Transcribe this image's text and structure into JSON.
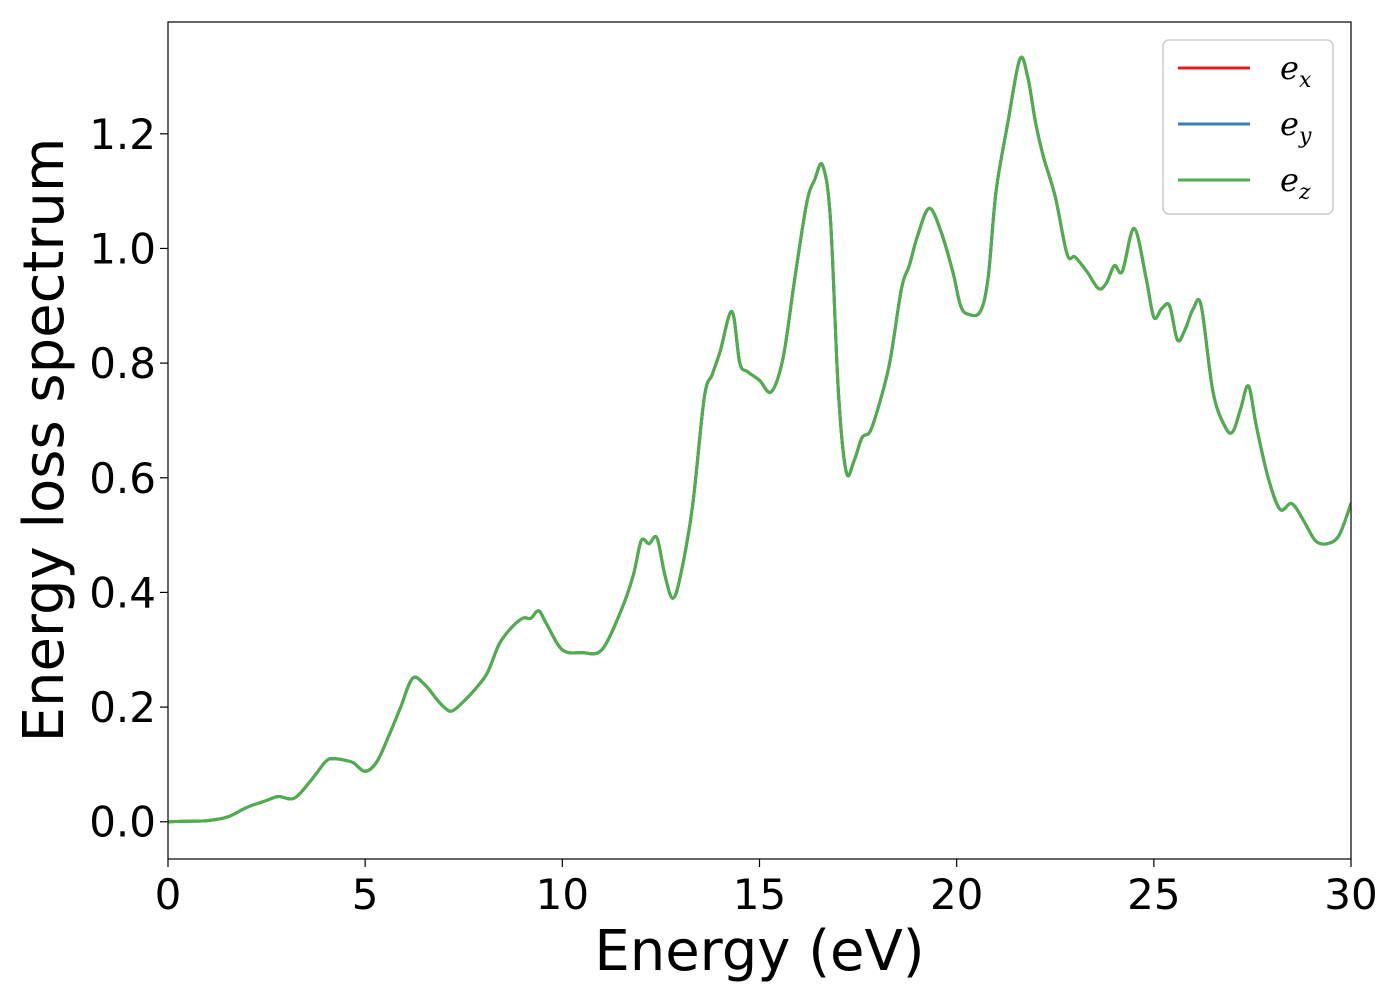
{
  "chart_data": {
    "type": "line",
    "title": "",
    "xlabel": "Energy (eV)",
    "ylabel": "Energy loss spectrum",
    "xlim": [
      0,
      30
    ],
    "ylim": [
      -0.065,
      1.395
    ],
    "xticks": [
      0,
      5,
      10,
      15,
      20,
      25,
      30
    ],
    "xtick_labels": [
      "0",
      "5",
      "10",
      "15",
      "20",
      "25",
      "30"
    ],
    "yticks": [
      0.0,
      0.2,
      0.4,
      0.6,
      0.8,
      1.0,
      1.2
    ],
    "ytick_labels": [
      "0.0",
      "0.2",
      "0.4",
      "0.6",
      "0.8",
      "1.0",
      "1.2"
    ],
    "grid": false,
    "legend_position": "top-right",
    "series": [
      {
        "name": "e_x",
        "legend_base": "e",
        "legend_sub": "x",
        "color": "#e41a1c",
        "x": [
          0,
          0.5,
          1,
          1.5,
          2,
          2.5,
          2.8,
          3.2,
          3.6,
          4.0,
          4.2,
          4.5,
          4.7,
          5.0,
          5.3,
          5.6,
          5.9,
          6.2,
          6.5,
          6.8,
          7.0,
          7.2,
          7.5,
          7.8,
          8.1,
          8.4,
          8.7,
          9.0,
          9.2,
          9.4,
          9.6,
          10.0,
          10.5,
          11.0,
          11.5,
          11.8,
          12.0,
          12.2,
          12.4,
          12.6,
          12.8,
          13.0,
          13.3,
          13.6,
          13.8,
          14.0,
          14.3,
          14.5,
          14.7,
          15.0,
          15.3,
          15.6,
          15.9,
          16.2,
          16.4,
          16.6,
          16.8,
          17.0,
          17.2,
          17.4,
          17.6,
          17.8,
          18.0,
          18.3,
          18.6,
          18.8,
          19.0,
          19.3,
          19.6,
          19.9,
          20.1,
          20.3,
          20.6,
          20.8,
          21.0,
          21.3,
          21.6,
          21.8,
          22.0,
          22.2,
          22.5,
          22.8,
          23.0,
          23.3,
          23.6,
          23.8,
          24.0,
          24.2,
          24.5,
          24.8,
          25.0,
          25.2,
          25.4,
          25.6,
          25.8,
          26.0,
          26.2,
          26.5,
          26.8,
          27.0,
          27.2,
          27.4,
          27.6,
          27.9,
          28.2,
          28.5,
          28.8,
          29.1,
          29.4,
          29.7,
          30.0
        ],
        "y": [
          0.0,
          0.001,
          0.002,
          0.008,
          0.025,
          0.037,
          0.044,
          0.041,
          0.07,
          0.105,
          0.11,
          0.107,
          0.103,
          0.088,
          0.105,
          0.15,
          0.2,
          0.25,
          0.24,
          0.215,
          0.2,
          0.193,
          0.21,
          0.232,
          0.26,
          0.31,
          0.338,
          0.355,
          0.355,
          0.368,
          0.345,
          0.3,
          0.295,
          0.3,
          0.37,
          0.43,
          0.49,
          0.485,
          0.495,
          0.43,
          0.39,
          0.43,
          0.55,
          0.74,
          0.78,
          0.82,
          0.89,
          0.8,
          0.785,
          0.77,
          0.75,
          0.81,
          0.95,
          1.08,
          1.12,
          1.145,
          1.05,
          0.75,
          0.61,
          0.63,
          0.67,
          0.68,
          0.72,
          0.8,
          0.93,
          0.97,
          1.02,
          1.07,
          1.03,
          0.96,
          0.9,
          0.885,
          0.89,
          0.95,
          1.1,
          1.22,
          1.33,
          1.3,
          1.22,
          1.16,
          1.09,
          0.99,
          0.985,
          0.96,
          0.93,
          0.94,
          0.97,
          0.96,
          1.035,
          0.95,
          0.88,
          0.895,
          0.9,
          0.84,
          0.86,
          0.895,
          0.9,
          0.75,
          0.69,
          0.68,
          0.72,
          0.76,
          0.69,
          0.6,
          0.545,
          0.555,
          0.525,
          0.49,
          0.485,
          0.5,
          0.555
        ]
      },
      {
        "name": "e_y",
        "legend_base": "e",
        "legend_sub": "y",
        "color": "#377eb8",
        "x": [
          0,
          0.5,
          1,
          1.5,
          2,
          2.5,
          2.8,
          3.2,
          3.6,
          4.0,
          4.2,
          4.5,
          4.7,
          5.0,
          5.3,
          5.6,
          5.9,
          6.2,
          6.5,
          6.8,
          7.0,
          7.2,
          7.5,
          7.8,
          8.1,
          8.4,
          8.7,
          9.0,
          9.2,
          9.4,
          9.6,
          10.0,
          10.5,
          11.0,
          11.5,
          11.8,
          12.0,
          12.2,
          12.4,
          12.6,
          12.8,
          13.0,
          13.3,
          13.6,
          13.8,
          14.0,
          14.3,
          14.5,
          14.7,
          15.0,
          15.3,
          15.6,
          15.9,
          16.2,
          16.4,
          16.6,
          16.8,
          17.0,
          17.2,
          17.4,
          17.6,
          17.8,
          18.0,
          18.3,
          18.6,
          18.8,
          19.0,
          19.3,
          19.6,
          19.9,
          20.1,
          20.3,
          20.6,
          20.8,
          21.0,
          21.3,
          21.6,
          21.8,
          22.0,
          22.2,
          22.5,
          22.8,
          23.0,
          23.3,
          23.6,
          23.8,
          24.0,
          24.2,
          24.5,
          24.8,
          25.0,
          25.2,
          25.4,
          25.6,
          25.8,
          26.0,
          26.2,
          26.5,
          26.8,
          27.0,
          27.2,
          27.4,
          27.6,
          27.9,
          28.2,
          28.5,
          28.8,
          29.1,
          29.4,
          29.7,
          30.0
        ],
        "y": [
          0.0,
          0.001,
          0.002,
          0.008,
          0.025,
          0.037,
          0.044,
          0.041,
          0.07,
          0.105,
          0.11,
          0.107,
          0.103,
          0.088,
          0.105,
          0.15,
          0.2,
          0.25,
          0.24,
          0.215,
          0.2,
          0.193,
          0.21,
          0.232,
          0.26,
          0.31,
          0.338,
          0.355,
          0.355,
          0.368,
          0.345,
          0.3,
          0.295,
          0.3,
          0.37,
          0.43,
          0.49,
          0.485,
          0.495,
          0.43,
          0.39,
          0.43,
          0.55,
          0.74,
          0.78,
          0.82,
          0.89,
          0.8,
          0.785,
          0.77,
          0.75,
          0.81,
          0.95,
          1.08,
          1.12,
          1.145,
          1.05,
          0.75,
          0.61,
          0.63,
          0.67,
          0.68,
          0.72,
          0.8,
          0.93,
          0.97,
          1.02,
          1.07,
          1.03,
          0.96,
          0.9,
          0.885,
          0.89,
          0.95,
          1.1,
          1.22,
          1.33,
          1.3,
          1.22,
          1.16,
          1.09,
          0.99,
          0.985,
          0.96,
          0.93,
          0.94,
          0.97,
          0.96,
          1.035,
          0.95,
          0.88,
          0.895,
          0.9,
          0.84,
          0.86,
          0.895,
          0.9,
          0.75,
          0.69,
          0.68,
          0.72,
          0.76,
          0.69,
          0.6,
          0.545,
          0.555,
          0.525,
          0.49,
          0.485,
          0.5,
          0.555
        ]
      },
      {
        "name": "e_z",
        "legend_base": "e",
        "legend_sub": "z",
        "color": "#4daf4a",
        "x": [
          0,
          0.5,
          1,
          1.5,
          2,
          2.5,
          2.8,
          3.2,
          3.6,
          4.0,
          4.2,
          4.5,
          4.7,
          5.0,
          5.3,
          5.6,
          5.9,
          6.2,
          6.5,
          6.8,
          7.0,
          7.2,
          7.5,
          7.8,
          8.1,
          8.4,
          8.7,
          9.0,
          9.2,
          9.4,
          9.6,
          10.0,
          10.5,
          11.0,
          11.5,
          11.8,
          12.0,
          12.2,
          12.4,
          12.6,
          12.8,
          13.0,
          13.3,
          13.6,
          13.8,
          14.0,
          14.3,
          14.5,
          14.7,
          15.0,
          15.3,
          15.6,
          15.9,
          16.2,
          16.4,
          16.6,
          16.8,
          17.0,
          17.2,
          17.4,
          17.6,
          17.8,
          18.0,
          18.3,
          18.6,
          18.8,
          19.0,
          19.3,
          19.6,
          19.9,
          20.1,
          20.3,
          20.6,
          20.8,
          21.0,
          21.3,
          21.6,
          21.8,
          22.0,
          22.2,
          22.5,
          22.8,
          23.0,
          23.3,
          23.6,
          23.8,
          24.0,
          24.2,
          24.5,
          24.8,
          25.0,
          25.2,
          25.4,
          25.6,
          25.8,
          26.0,
          26.2,
          26.5,
          26.8,
          27.0,
          27.2,
          27.4,
          27.6,
          27.9,
          28.2,
          28.5,
          28.8,
          29.1,
          29.4,
          29.7,
          30.0
        ],
        "y": [
          0.0,
          0.001,
          0.002,
          0.008,
          0.025,
          0.037,
          0.044,
          0.041,
          0.07,
          0.105,
          0.11,
          0.107,
          0.103,
          0.088,
          0.105,
          0.15,
          0.2,
          0.25,
          0.24,
          0.215,
          0.2,
          0.193,
          0.21,
          0.232,
          0.26,
          0.31,
          0.338,
          0.355,
          0.355,
          0.368,
          0.345,
          0.3,
          0.295,
          0.3,
          0.37,
          0.43,
          0.49,
          0.485,
          0.495,
          0.43,
          0.39,
          0.43,
          0.55,
          0.74,
          0.78,
          0.82,
          0.89,
          0.8,
          0.785,
          0.77,
          0.75,
          0.81,
          0.95,
          1.08,
          1.12,
          1.145,
          1.05,
          0.75,
          0.61,
          0.63,
          0.67,
          0.68,
          0.72,
          0.8,
          0.93,
          0.97,
          1.02,
          1.07,
          1.03,
          0.96,
          0.9,
          0.885,
          0.89,
          0.95,
          1.1,
          1.22,
          1.33,
          1.3,
          1.22,
          1.16,
          1.09,
          0.99,
          0.985,
          0.96,
          0.93,
          0.94,
          0.97,
          0.96,
          1.035,
          0.95,
          0.88,
          0.895,
          0.9,
          0.84,
          0.86,
          0.895,
          0.9,
          0.75,
          0.69,
          0.68,
          0.72,
          0.76,
          0.69,
          0.6,
          0.545,
          0.555,
          0.525,
          0.49,
          0.485,
          0.5,
          0.555
        ]
      }
    ]
  }
}
